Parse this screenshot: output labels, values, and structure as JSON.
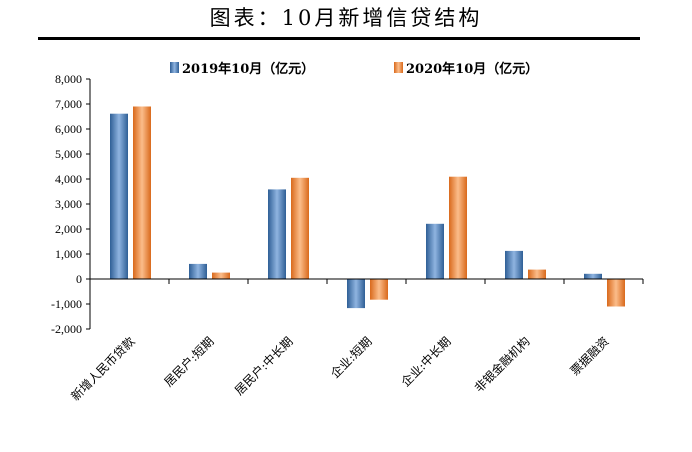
{
  "page": {
    "title": "图表：10月新增信贷结构"
  },
  "chart_data": {
    "type": "bar",
    "categories": [
      "新增人民币贷款",
      "居民户:短期",
      "居民户:中长期",
      "企业:短期",
      "企业:中长期",
      "非银金融机构",
      "票据融资"
    ],
    "series": [
      {
        "name": "2019年10月（亿元）",
        "color": "#4f81bd",
        "values": [
          6613,
          604,
          3583,
          -1162,
          2209,
          1124,
          210
        ]
      },
      {
        "name": "2020年10月（亿元）",
        "color": "#f79646",
        "values": [
          6898,
          258,
          4047,
          -827,
          4092,
          374,
          -1100
        ]
      }
    ],
    "ylim": [
      -2000,
      8000
    ],
    "yticks": [
      -2000,
      -1000,
      0,
      1000,
      2000,
      3000,
      4000,
      5000,
      6000,
      7000,
      8000
    ],
    "ytick_labels": [
      "-2,000",
      "-1,000",
      "0",
      "1,000",
      "2,000",
      "3,000",
      "4,000",
      "5,000",
      "6,000",
      "7,000",
      "8,000"
    ],
    "legend_position": "top-center",
    "grid": false
  }
}
